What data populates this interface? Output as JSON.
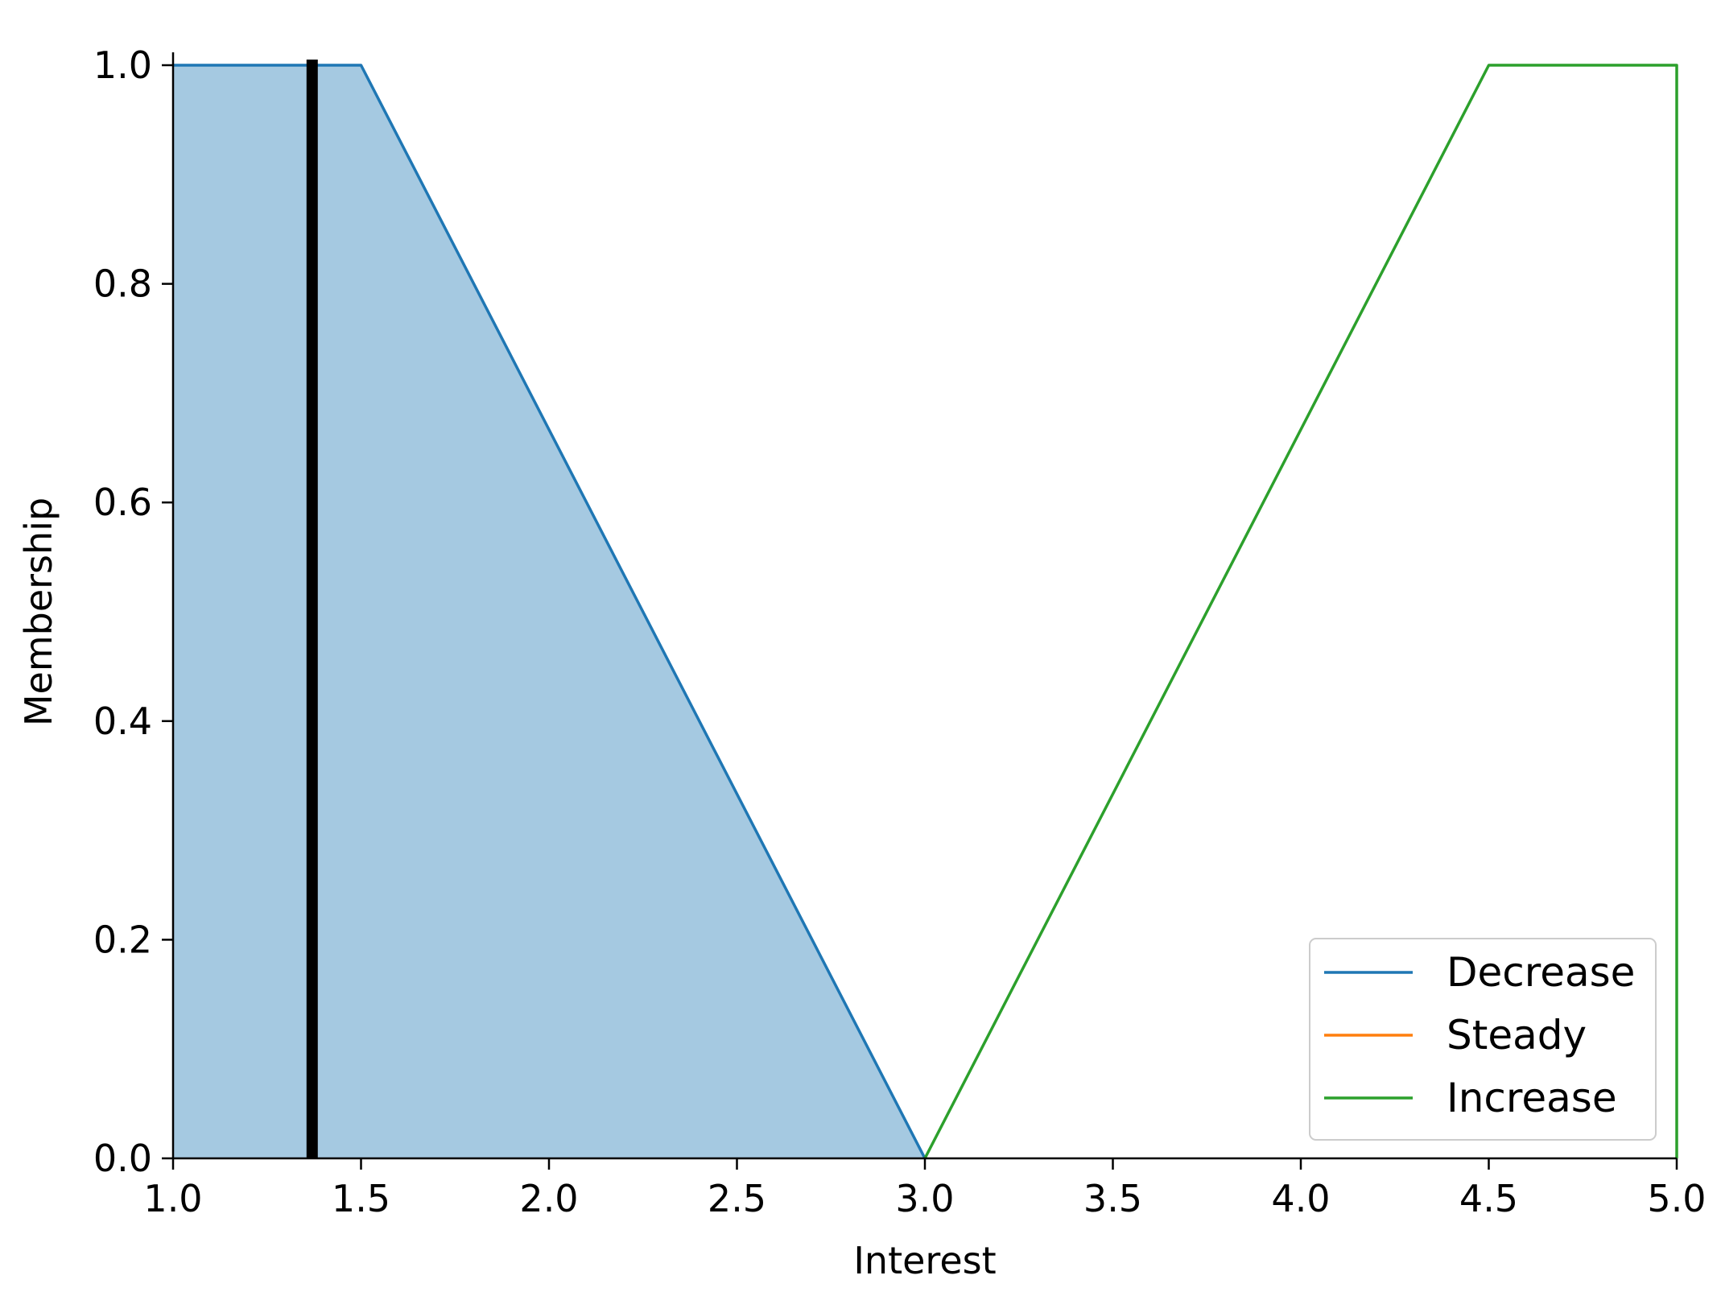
{
  "chart_data": {
    "type": "line",
    "title": "",
    "xlabel": "Interest",
    "ylabel": "Membership",
    "xlim": [
      1.0,
      5.0
    ],
    "ylim": [
      0.0,
      1.0
    ],
    "xticks": [
      "1.0",
      "1.5",
      "2.0",
      "2.5",
      "3.0",
      "3.5",
      "4.0",
      "4.5",
      "5.0"
    ],
    "yticks": [
      "0.0",
      "0.2",
      "0.4",
      "0.6",
      "0.8",
      "1.0"
    ],
    "grid": false,
    "legend_position": "lower-right",
    "series": [
      {
        "name": "Decrease",
        "color": "#1f77b4",
        "x": [
          1.0,
          1.5,
          3.0
        ],
        "y": [
          1.0,
          1.0,
          0.0
        ]
      },
      {
        "name": "Steady",
        "color": "#ff7f0e",
        "x": [],
        "y": []
      },
      {
        "name": "Increase",
        "color": "#2ca02c",
        "x": [
          3.0,
          4.5,
          5.0,
          5.0
        ],
        "y": [
          0.0,
          1.0,
          1.0,
          0.0
        ]
      }
    ],
    "filled_region": {
      "series": "Decrease",
      "color": "#1f77b4",
      "opacity": 0.4
    },
    "marker_line": {
      "x": 1.37,
      "y_max": 1.0,
      "color": "#000000"
    }
  }
}
